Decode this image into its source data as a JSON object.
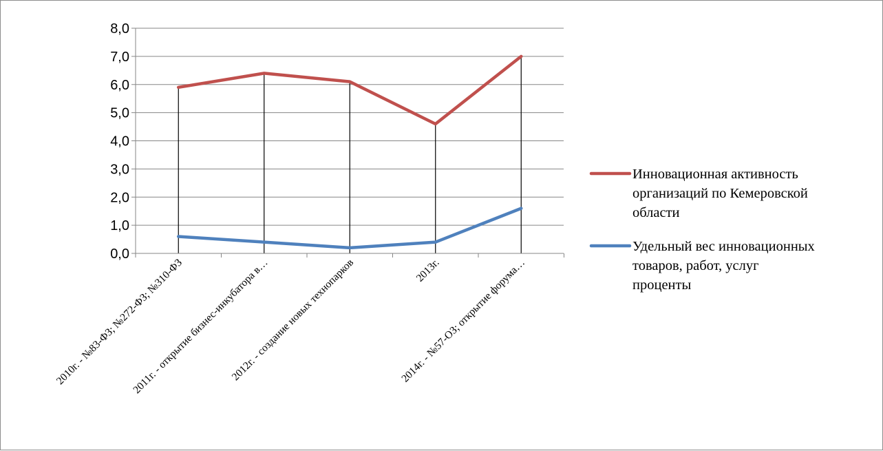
{
  "chart_data": {
    "type": "line",
    "title": "",
    "xlabel": "",
    "ylabel": "",
    "categories": [
      "2010г. - №83-ФЗ; №272-ФЗ; №310-ФЗ",
      "2011г. - открытие бизнес-инкубатора в…",
      "2012г. - создание новых технопарков",
      "2013г.",
      "2014г. - №57-ОЗ; открытие форума…"
    ],
    "ylim": [
      0,
      8
    ],
    "yticks": [
      "0,0",
      "1,0",
      "2,0",
      "3,0",
      "4,0",
      "5,0",
      "6,0",
      "7,0",
      "8,0"
    ],
    "grid": true,
    "drop_lines": true,
    "legend_position": "right",
    "series": [
      {
        "name": "Инновационная активность организаций по Кемеровской области",
        "legend_lines": [
          "Инновационная активность",
          "организаций по Кемеровской",
          "области"
        ],
        "color": "#c0504d",
        "values": [
          5.9,
          6.4,
          6.1,
          4.6,
          7.0
        ]
      },
      {
        "name": "Удельный вес инновационных товаров, работ, услуг проценты",
        "legend_lines": [
          "Удельный вес инновационных",
          "товаров, работ, услуг",
          "проценты"
        ],
        "color": "#4f81bd",
        "values": [
          0.6,
          0.4,
          0.2,
          0.4,
          1.6
        ]
      }
    ]
  }
}
